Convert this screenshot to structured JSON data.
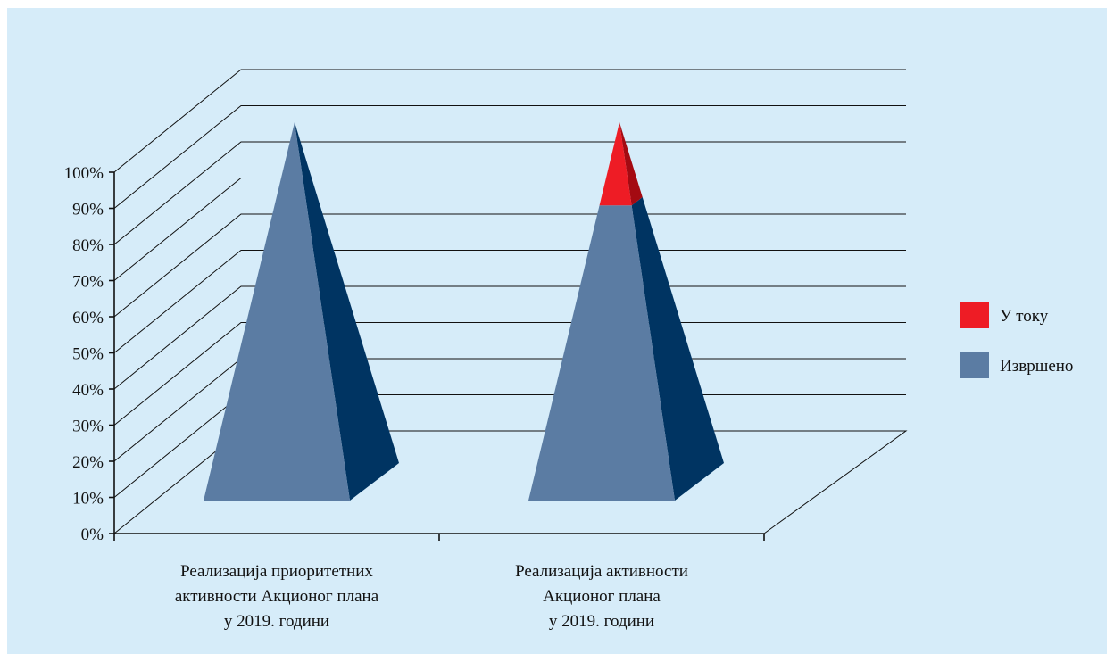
{
  "chart_data": {
    "type": "bar",
    "shape": "pyramid-3d",
    "categories": [
      [
        "Реализација приоритетних",
        "активности Акционог плана",
        "у 2019. години"
      ],
      [
        "Реализација активности",
        "Акционог плана",
        "у 2019. години"
      ]
    ],
    "series": [
      {
        "name": "Извршено",
        "values": [
          100,
          78
        ],
        "color": "#5b7ca3"
      },
      {
        "name": "У току",
        "values": [
          0,
          22
        ],
        "color": "#ee1c25"
      }
    ],
    "ylim": [
      0,
      100
    ],
    "y_ticks": [
      "0%",
      "10%",
      "20%",
      "30%",
      "40%",
      "50%",
      "60%",
      "70%",
      "80%",
      "90%",
      "100%"
    ],
    "legend": {
      "placement": "right",
      "items": [
        {
          "label": "У току",
          "color": "#ee1c25"
        },
        {
          "label": "Извршено",
          "color": "#5b7ca3"
        }
      ]
    },
    "colors": {
      "background": "#d6ecf9",
      "blue_front": "#5b7ca3",
      "blue_side": "#003462",
      "red_front": "#ee1c25",
      "red_side": "#a40a12"
    }
  }
}
